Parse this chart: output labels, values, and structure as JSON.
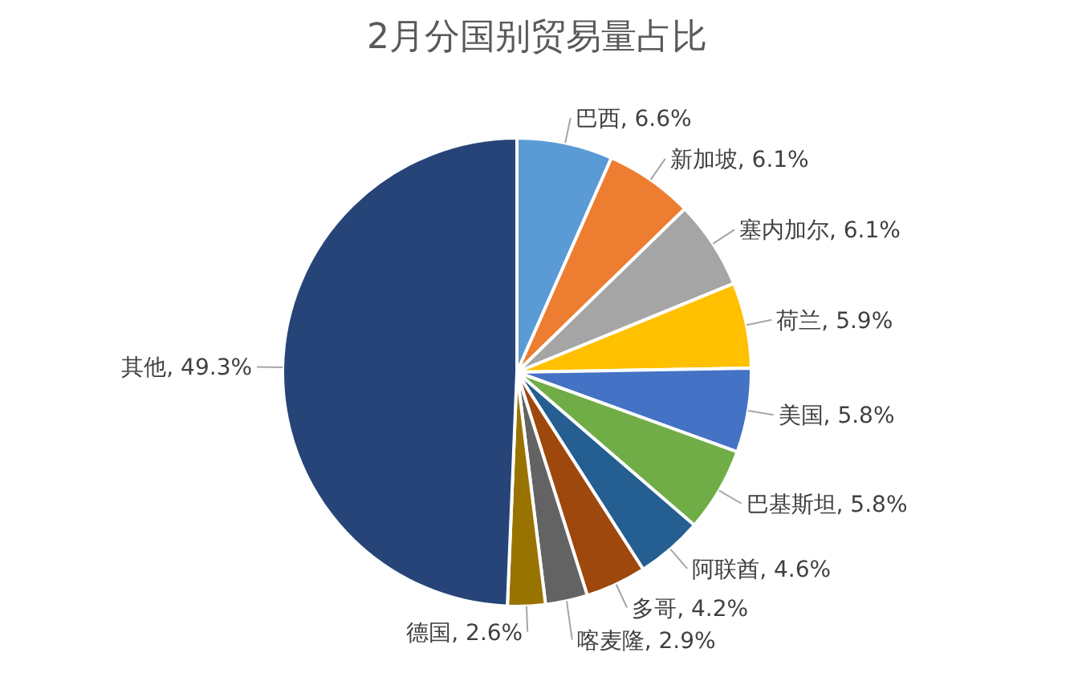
{
  "chart_data": {
    "type": "pie",
    "title": "2月分国别贸易量占比",
    "categories": [
      "巴西",
      "新加坡",
      "塞内加尔",
      "荷兰",
      "美国",
      "巴基斯坦",
      "阿联酋",
      "多哥",
      "喀麦隆",
      "德国",
      "其他"
    ],
    "values": [
      6.6,
      6.1,
      6.1,
      5.9,
      5.8,
      5.8,
      4.6,
      4.2,
      2.9,
      2.6,
      49.3
    ],
    "value_labels": [
      "6.6%",
      "6.1%",
      "6.1%",
      "5.9%",
      "5.8%",
      "5.8%",
      "4.6%",
      "4.2%",
      "2.9%",
      "2.6%",
      "49.3%"
    ],
    "colors": [
      "#5b9bd5",
      "#ed7d31",
      "#a5a5a5",
      "#ffc000",
      "#4472c4",
      "#70ad47",
      "#255e91",
      "#9e480e",
      "#636363",
      "#997300",
      "#264478"
    ]
  }
}
